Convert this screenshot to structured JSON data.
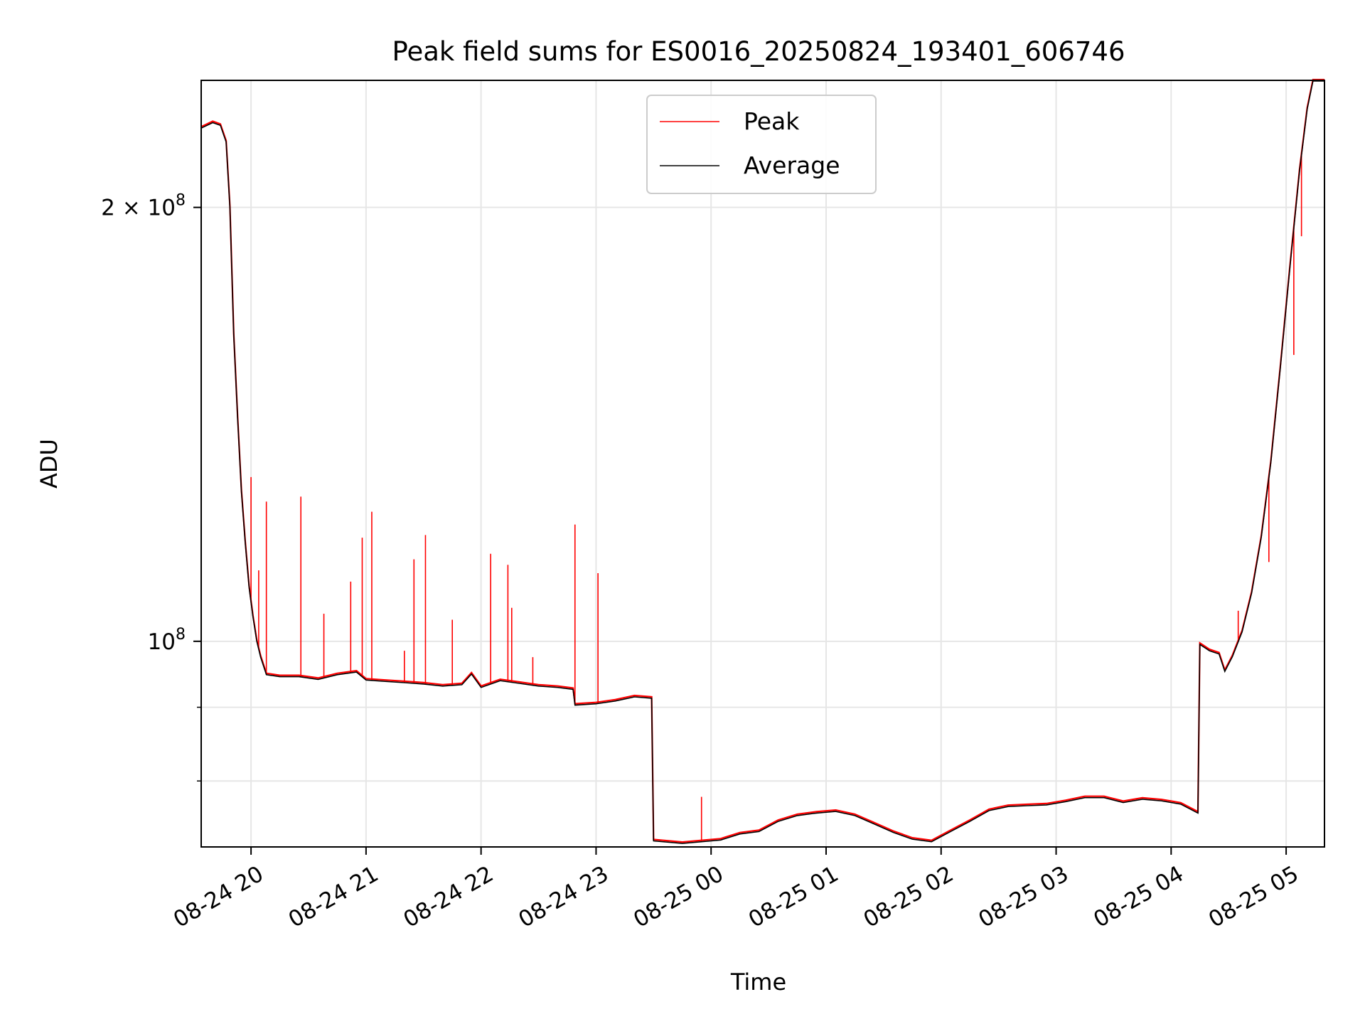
{
  "chart_data": {
    "type": "line",
    "title": "Peak field sums for ES0016_20250824_193401_606746",
    "xlabel": "Time",
    "ylabel": "ADU",
    "xlim": [
      "2025-08-24T19:34",
      "2025-08-25T05:20"
    ],
    "ylim": [
      72000000,
      245000000
    ],
    "yscale": "log",
    "grid": true,
    "legend_position": "upper center",
    "x_ticks": [
      {
        "t": "2025-08-24T20:00",
        "label": "08-24 20"
      },
      {
        "t": "2025-08-24T21:00",
        "label": "08-24 21"
      },
      {
        "t": "2025-08-24T22:00",
        "label": "08-24 22"
      },
      {
        "t": "2025-08-24T23:00",
        "label": "08-24 23"
      },
      {
        "t": "2025-08-25T00:00",
        "label": "08-25 00"
      },
      {
        "t": "2025-08-25T01:00",
        "label": "08-25 01"
      },
      {
        "t": "2025-08-25T02:00",
        "label": "08-25 02"
      },
      {
        "t": "2025-08-25T03:00",
        "label": "08-25 03"
      },
      {
        "t": "2025-08-25T04:00",
        "label": "08-25 04"
      },
      {
        "t": "2025-08-25T05:00",
        "label": "08-25 05"
      }
    ],
    "y_ticks_major": [
      {
        "value": 100000000,
        "base": "10",
        "exp": "8",
        "mant": ""
      },
      {
        "value": 200000000,
        "base": "10",
        "exp": "8",
        "mant": "2 × "
      }
    ],
    "y_ticks_minor": [
      80000000,
      90000000
    ],
    "series": [
      {
        "name": "Average",
        "color": "#000000",
        "points": [
          [
            "2025-08-24T19:34",
            227000000
          ],
          [
            "2025-08-24T19:40",
            229000000
          ],
          [
            "2025-08-24T19:44",
            228000000
          ],
          [
            "2025-08-24T19:47",
            222000000
          ],
          [
            "2025-08-24T19:49",
            200000000
          ],
          [
            "2025-08-24T19:51",
            163000000
          ],
          [
            "2025-08-24T19:53",
            143000000
          ],
          [
            "2025-08-24T19:55",
            127000000
          ],
          [
            "2025-08-24T19:57",
            117000000
          ],
          [
            "2025-08-24T19:59",
            109000000
          ],
          [
            "2025-08-24T20:01",
            104000000
          ],
          [
            "2025-08-24T20:03",
            100000000
          ],
          [
            "2025-08-24T20:05",
            97500000
          ],
          [
            "2025-08-24T20:08",
            94800000
          ],
          [
            "2025-08-24T20:15",
            94500000
          ],
          [
            "2025-08-24T20:25",
            94500000
          ],
          [
            "2025-08-24T20:35",
            94100000
          ],
          [
            "2025-08-24T20:45",
            94800000
          ],
          [
            "2025-08-24T20:55",
            95200000
          ],
          [
            "2025-08-24T21:00",
            94000000
          ],
          [
            "2025-08-24T21:10",
            93800000
          ],
          [
            "2025-08-24T21:20",
            93600000
          ],
          [
            "2025-08-24T21:30",
            93400000
          ],
          [
            "2025-08-24T21:40",
            93100000
          ],
          [
            "2025-08-24T21:50",
            93300000
          ],
          [
            "2025-08-24T21:55",
            94900000
          ],
          [
            "2025-08-24T22:00",
            92900000
          ],
          [
            "2025-08-24T22:10",
            93900000
          ],
          [
            "2025-08-24T22:20",
            93500000
          ],
          [
            "2025-08-24T22:30",
            93100000
          ],
          [
            "2025-08-24T22:40",
            92900000
          ],
          [
            "2025-08-24T22:48",
            92600000
          ],
          [
            "2025-08-24T22:49",
            90300000
          ],
          [
            "2025-08-24T23:00",
            90500000
          ],
          [
            "2025-08-24T23:10",
            90900000
          ],
          [
            "2025-08-24T23:20",
            91500000
          ],
          [
            "2025-08-24T23:29",
            91300000
          ],
          [
            "2025-08-24T23:30",
            72700000
          ],
          [
            "2025-08-24T23:45",
            72400000
          ],
          [
            "2025-08-24T23:55",
            72600000
          ],
          [
            "2025-08-25T00:05",
            72800000
          ],
          [
            "2025-08-25T00:15",
            73500000
          ],
          [
            "2025-08-25T00:25",
            73800000
          ],
          [
            "2025-08-25T00:35",
            75000000
          ],
          [
            "2025-08-25T00:45",
            75700000
          ],
          [
            "2025-08-25T00:55",
            76000000
          ],
          [
            "2025-08-25T01:05",
            76200000
          ],
          [
            "2025-08-25T01:15",
            75700000
          ],
          [
            "2025-08-25T01:25",
            74700000
          ],
          [
            "2025-08-25T01:35",
            73700000
          ],
          [
            "2025-08-25T01:45",
            72900000
          ],
          [
            "2025-08-25T01:55",
            72600000
          ],
          [
            "2025-08-25T02:05",
            73800000
          ],
          [
            "2025-08-25T02:15",
            75000000
          ],
          [
            "2025-08-25T02:25",
            76300000
          ],
          [
            "2025-08-25T02:35",
            76800000
          ],
          [
            "2025-08-25T02:45",
            76900000
          ],
          [
            "2025-08-25T02:55",
            77000000
          ],
          [
            "2025-08-25T03:05",
            77400000
          ],
          [
            "2025-08-25T03:15",
            77900000
          ],
          [
            "2025-08-25T03:25",
            77900000
          ],
          [
            "2025-08-25T03:35",
            77300000
          ],
          [
            "2025-08-25T03:45",
            77700000
          ],
          [
            "2025-08-25T03:55",
            77500000
          ],
          [
            "2025-08-25T04:05",
            77100000
          ],
          [
            "2025-08-25T04:14",
            76000000
          ],
          [
            "2025-08-25T04:15",
            99500000
          ],
          [
            "2025-08-25T04:20",
            98500000
          ],
          [
            "2025-08-25T04:25",
            98000000
          ],
          [
            "2025-08-25T04:28",
            95300000
          ],
          [
            "2025-08-25T04:32",
            97600000
          ],
          [
            "2025-08-25T04:37",
            101500000
          ],
          [
            "2025-08-25T04:42",
            108000000
          ],
          [
            "2025-08-25T04:47",
            118000000
          ],
          [
            "2025-08-25T04:52",
            133000000
          ],
          [
            "2025-08-25T04:57",
            155000000
          ],
          [
            "2025-08-25T05:02",
            182000000
          ],
          [
            "2025-08-25T05:07",
            212000000
          ],
          [
            "2025-08-25T05:11",
            234000000
          ],
          [
            "2025-08-25T05:14",
            245000000
          ],
          [
            "2025-08-25T05:20",
            245000000
          ]
        ]
      },
      {
        "name": "Peak",
        "color": "#ff0000",
        "spikes": [
          [
            "2025-08-24T20:00",
            130000000
          ],
          [
            "2025-08-24T20:08",
            125000000
          ],
          [
            "2025-08-24T20:04",
            112000000
          ],
          [
            "2025-08-24T20:26",
            126000000
          ],
          [
            "2025-08-24T20:38",
            104500000
          ],
          [
            "2025-08-24T20:52",
            110000000
          ],
          [
            "2025-08-24T20:58",
            118000000
          ],
          [
            "2025-08-24T21:03",
            123000000
          ],
          [
            "2025-08-24T21:20",
            98500000
          ],
          [
            "2025-08-24T21:25",
            114000000
          ],
          [
            "2025-08-24T21:31",
            118500000
          ],
          [
            "2025-08-24T21:45",
            103500000
          ],
          [
            "2025-08-24T22:05",
            115000000
          ],
          [
            "2025-08-24T22:14",
            113000000
          ],
          [
            "2025-08-24T22:16",
            105500000
          ],
          [
            "2025-08-24T22:27",
            97500000
          ],
          [
            "2025-08-24T22:49",
            120500000
          ],
          [
            "2025-08-24T23:01",
            111500000
          ],
          [
            "2025-08-24T23:55",
            78000000
          ],
          [
            "2025-08-25T04:35",
            105000000
          ],
          [
            "2025-08-25T04:51",
            113500000
          ],
          [
            "2025-08-25T05:04",
            158000000
          ],
          [
            "2025-08-25T05:08",
            191000000
          ]
        ]
      }
    ]
  }
}
